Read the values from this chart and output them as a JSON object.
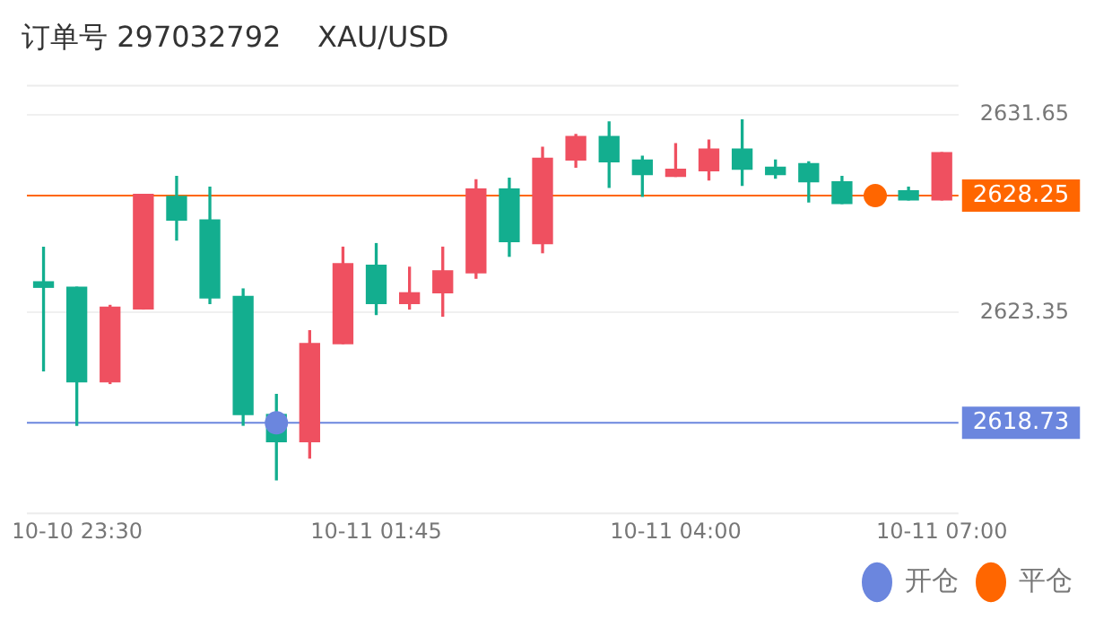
{
  "chart_data": {
    "type": "candlestick",
    "title": "订单号 297032792    XAU/USD",
    "categories": [
      null,
      "10-10 23:30",
      null,
      null,
      null,
      null,
      null,
      null,
      null,
      null,
      "10-11 01:45",
      null,
      null,
      null,
      null,
      null,
      null,
      null,
      null,
      "10-11 04:00",
      null,
      null,
      null,
      null,
      null,
      null,
      null,
      "10-11 07:00"
    ],
    "ohlc": [
      [
        2624.64,
        2626.09,
        2620.91,
        2624.41
      ],
      [
        2624.41,
        2624.41,
        2618.63,
        2620.45
      ],
      [
        2620.45,
        2623.65,
        2620.38,
        2623.58
      ],
      [
        2623.5,
        2628.3,
        2623.5,
        2628.3
      ],
      [
        2628.22,
        2629.06,
        2626.39,
        2627.23
      ],
      [
        2627.23,
        2628.6,
        2623.73,
        2623.96
      ],
      [
        2624.03,
        2624.34,
        2618.63,
        2619.08
      ],
      [
        2619.08,
        2619.92,
        2616.34,
        2617.94
      ],
      [
        2617.94,
        2622.59,
        2617.25,
        2622.05
      ],
      [
        2622.05,
        2626.09,
        2622.05,
        2625.4
      ],
      [
        2625.33,
        2626.24,
        2623.27,
        2623.73
      ],
      [
        2623.73,
        2625.25,
        2623.5,
        2624.18
      ],
      [
        2624.18,
        2626.09,
        2623.2,
        2625.1
      ],
      [
        2625.02,
        2628.91,
        2624.79,
        2628.53
      ],
      [
        2628.53,
        2628.98,
        2625.71,
        2626.32
      ],
      [
        2626.24,
        2630.28,
        2625.86,
        2629.82
      ],
      [
        2629.74,
        2630.81,
        2629.44,
        2630.73
      ],
      [
        2630.73,
        2631.34,
        2628.6,
        2629.67
      ],
      [
        2629.74,
        2629.9,
        2628.22,
        2629.13
      ],
      [
        2629.06,
        2630.43,
        2629.06,
        2629.36
      ],
      [
        2629.29,
        2630.58,
        2628.91,
        2630.2
      ],
      [
        2630.2,
        2631.42,
        2628.68,
        2629.36
      ],
      [
        2629.44,
        2629.74,
        2628.98,
        2629.13
      ],
      [
        2629.59,
        2629.67,
        2627.99,
        2628.83
      ],
      [
        2628.83,
        2629.06,
        2627.92,
        2627.92
      ],
      null,
      [
        2628.45,
        2628.6,
        2628.07,
        2628.07
      ],
      [
        2628.07,
        2630.05,
        2628.07,
        2630.05
      ]
    ],
    "colors": [
      "#13ae8f",
      "#13ae8f",
      "#ef5060",
      "#ef5060",
      "#13ae8f",
      "#13ae8f",
      "#13ae8f",
      "#13ae8f",
      "#ef5060",
      "#ef5060",
      "#13ae8f",
      "#ef5060",
      "#ef5060",
      "#ef5060",
      "#13ae8f",
      "#ef5060",
      "#ef5060",
      "#13ae8f",
      "#13ae8f",
      "#ef5060",
      "#ef5060",
      "#13ae8f",
      "#13ae8f",
      "#13ae8f",
      "#13ae8f",
      null,
      "#13ae8f",
      "#ef5060"
    ],
    "series": [
      {
        "type": "scatter",
        "name": "开仓",
        "color": "#6b86de",
        "values": [
          null,
          null,
          null,
          null,
          null,
          null,
          null,
          2618.73,
          null,
          null,
          null,
          null,
          null,
          null,
          null,
          null,
          null,
          null,
          null,
          null,
          null,
          null,
          null,
          null,
          null,
          null,
          null,
          null
        ]
      },
      {
        "type": "scatter",
        "name": "平仓",
        "color": "#ff6600",
        "values": [
          null,
          null,
          null,
          null,
          null,
          null,
          null,
          null,
          null,
          null,
          null,
          null,
          null,
          null,
          null,
          null,
          null,
          null,
          null,
          null,
          null,
          null,
          null,
          null,
          null,
          2628.25,
          null,
          null
        ]
      }
    ],
    "ylim": [
      2614.9,
      2632.9
    ],
    "yticks": [
      2631.65,
      2623.35
    ],
    "ref_lines": [
      {
        "axis": "y",
        "value": 2628.25,
        "label": "2628.25",
        "color": "#ff6600"
      },
      {
        "axis": "y",
        "value": 2618.73,
        "label": "2618.73",
        "color": "#6b86de"
      }
    ],
    "grid": "y",
    "legend": "bottom right",
    "marker": "circle"
  }
}
